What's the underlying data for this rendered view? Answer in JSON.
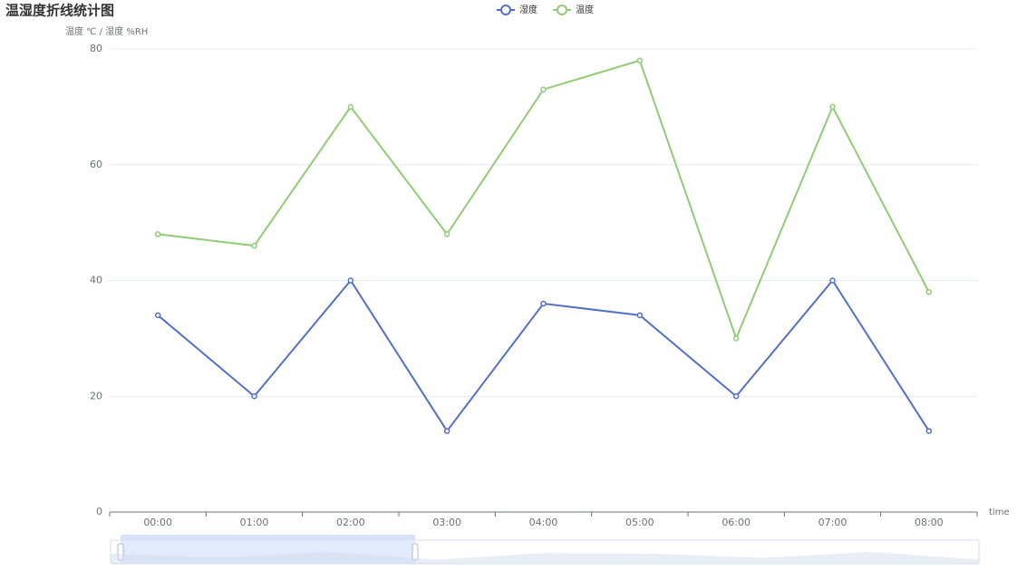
{
  "chart_data": {
    "type": "line",
    "title": "温湿度折线统计图",
    "y_axis_label": "温度 ℃ / 湿度 %RH",
    "x_axis_label": "time",
    "categories": [
      "00:00",
      "01:00",
      "02:00",
      "03:00",
      "04:00",
      "05:00",
      "06:00",
      "07:00",
      "08:00"
    ],
    "series": [
      {
        "name": "湿度",
        "color": "#5470c6",
        "values": [
          34,
          20,
          40,
          14,
          36,
          34,
          20,
          40,
          14
        ]
      },
      {
        "name": "温度",
        "color": "#91cc75",
        "values": [
          48,
          46,
          70,
          48,
          73,
          78,
          30,
          70,
          38
        ]
      }
    ],
    "ylim": [
      0,
      80
    ],
    "yticks": [
      0,
      20,
      40,
      60,
      80
    ],
    "grid": true
  }
}
